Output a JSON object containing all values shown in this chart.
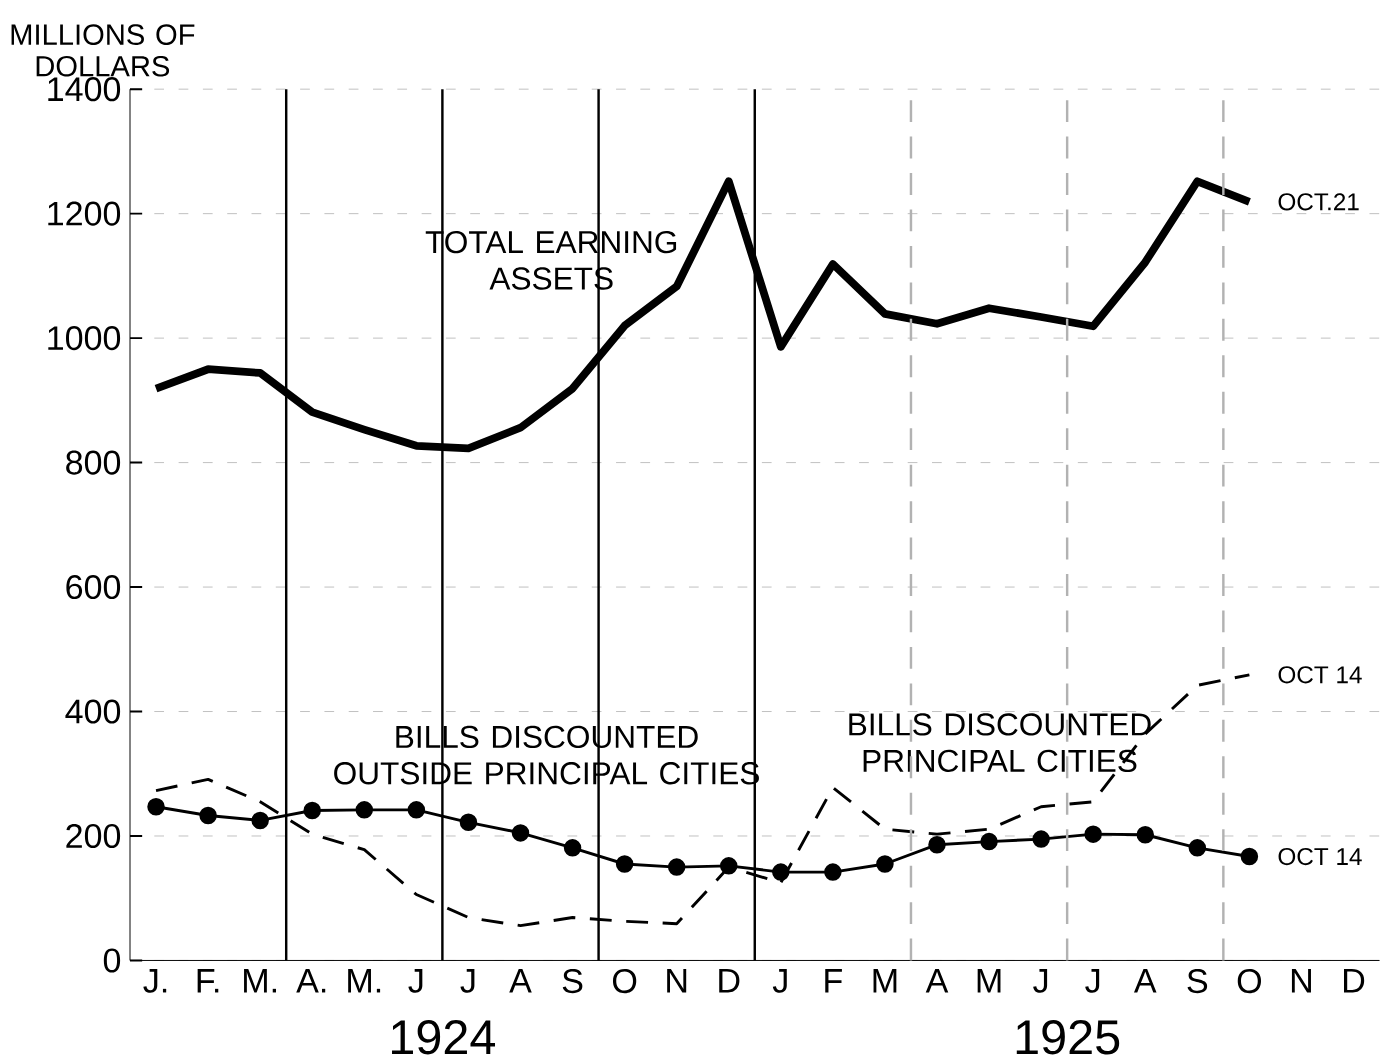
{
  "chart_data": {
    "type": "line",
    "ylabel": "MILLIONS OF DOLLARS",
    "categories": [
      "J.",
      "F.",
      "M.",
      "A.",
      "M.",
      "J",
      "J",
      "A",
      "S",
      "O",
      "N",
      "D",
      "J",
      "F",
      "M",
      "A",
      "M",
      "J",
      "J",
      "A",
      "S",
      "O",
      "N",
      "D"
    ],
    "ylim": [
      0,
      1400
    ],
    "yticks": [
      0,
      200,
      400,
      600,
      800,
      1000,
      1200,
      1400
    ],
    "grid": "y",
    "series": [
      {
        "name": "TOTAL EARNING ASSETS",
        "color": "#000000",
        "line_style": "solid",
        "marker": "none",
        "values": [
          919,
          950,
          944,
          881,
          853,
          827,
          823,
          856,
          919,
          1020,
          1083,
          1252,
          986,
          1119,
          1039,
          1023,
          1048,
          1034,
          1019,
          1122,
          1252,
          1219,
          null,
          null
        ]
      },
      {
        "name": "BILLS DISCOUNTED OUTSIDE PRINCIPAL CITIES",
        "color": "#000000",
        "line_style": "solid",
        "marker": "circle",
        "values": [
          247,
          233,
          225,
          241,
          242,
          242,
          222,
          205,
          181,
          155,
          150,
          152,
          142,
          142,
          155,
          186,
          191,
          195,
          203,
          202,
          181,
          167,
          null,
          null
        ]
      },
      {
        "name": "BILLS DISCOUNTED PRINCIPAL CITIES",
        "color": "#000000",
        "line_style": "dashed",
        "marker": "none",
        "values": [
          273,
          291,
          255,
          203,
          178,
          106,
          69,
          56,
          69,
          63,
          59,
          150,
          125,
          278,
          211,
          203,
          211,
          247,
          255,
          364,
          442,
          459,
          null,
          null
        ]
      }
    ],
    "annotations": [
      "OCT.21",
      "OCT 14",
      "OCT 14",
      "1924",
      "1925"
    ]
  }
}
